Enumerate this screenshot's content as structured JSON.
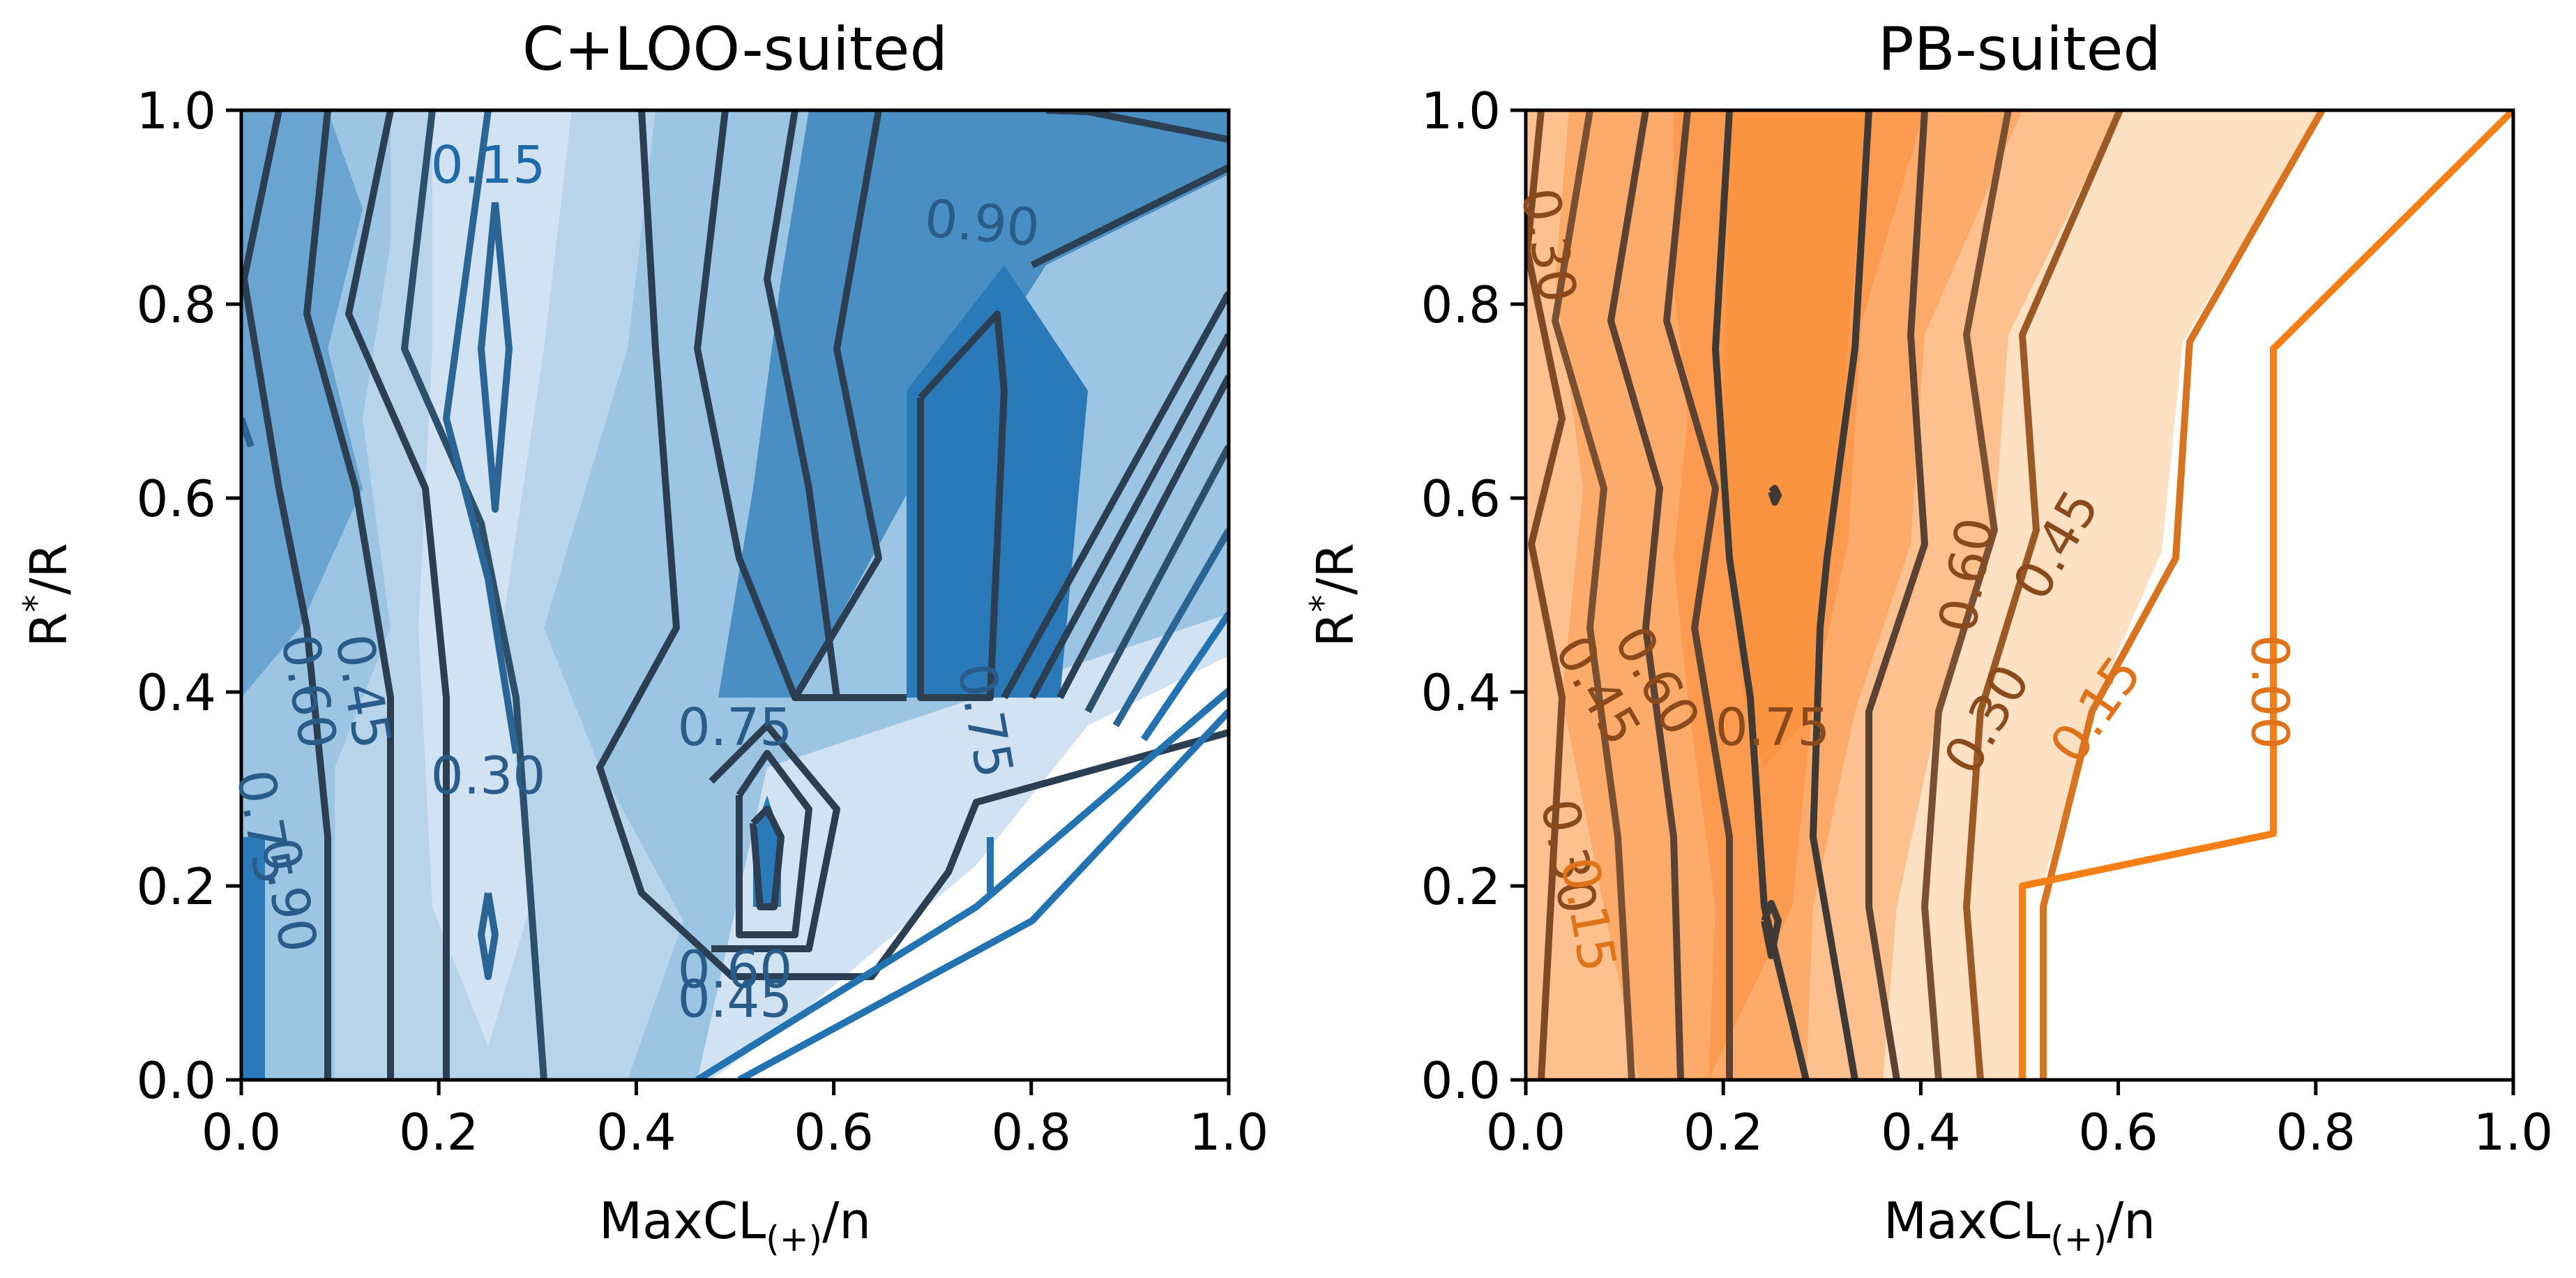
{
  "chart_data": [
    {
      "type": "contour",
      "title": "C+LOO-suited",
      "xlabel": {
        "base": "MaxCL",
        "sub": "(+)",
        "tail": "/n"
      },
      "ylabel": {
        "base": "R",
        "sup": "*",
        "tail": "/R"
      },
      "xlim": [
        0.0,
        1.0
      ],
      "ylim": [
        0.0,
        1.0
      ],
      "x_ticks": [
        "0.0",
        "0.2",
        "0.4",
        "0.6",
        "0.8",
        "1.0"
      ],
      "y_ticks": [
        "0.0",
        "0.2",
        "0.4",
        "0.6",
        "0.8",
        "1.0"
      ],
      "x_values": [
        0.0,
        0.25,
        0.5,
        0.75,
        1.0
      ],
      "y_values": [
        0.0,
        0.25,
        0.5,
        0.75,
        1.0
      ],
      "colormap": "Blues",
      "levels": [
        0.0,
        0.15,
        0.3,
        0.45,
        0.6,
        0.75,
        0.9
      ],
      "contour_labels": [
        {
          "text": "0.15",
          "x": 0.25,
          "y": 0.94
        },
        {
          "text": "0.90",
          "x": 0.75,
          "y": 0.88
        },
        {
          "text": "0.45",
          "x": 0.12,
          "y": 0.4
        },
        {
          "text": "0.60",
          "x": 0.065,
          "y": 0.4
        },
        {
          "text": "0.75",
          "x": 0.5,
          "y": 0.36
        },
        {
          "text": "0.30",
          "x": 0.25,
          "y": 0.31
        },
        {
          "text": "0.75",
          "x": 0.75,
          "y": 0.37
        },
        {
          "text": "0.60",
          "x": 0.5,
          "y": 0.11
        },
        {
          "text": "0.45",
          "x": 0.5,
          "y": 0.08
        },
        {
          "text": "0.75",
          "x": 0.02,
          "y": 0.26
        },
        {
          "text": "0.90",
          "x": 0.045,
          "y": 0.19
        }
      ]
    },
    {
      "type": "contour",
      "title": "PB-suited",
      "xlabel": {
        "base": "MaxCL",
        "sub": "(+)",
        "tail": "/n"
      },
      "ylabel": {
        "base": "R",
        "sup": "*",
        "tail": "/R"
      },
      "xlim": [
        0.0,
        1.0
      ],
      "ylim": [
        0.0,
        1.0
      ],
      "x_ticks": [
        "0.0",
        "0.2",
        "0.4",
        "0.6",
        "0.8",
        "1.0"
      ],
      "y_ticks": [
        "0.0",
        "0.2",
        "0.4",
        "0.6",
        "0.8",
        "1.0"
      ],
      "x_values": [
        0.0,
        0.25,
        0.5,
        0.75,
        1.0
      ],
      "y_values": [
        0.0,
        0.25,
        0.5,
        0.75,
        1.0
      ],
      "colormap": "Oranges",
      "levels": [
        0.0,
        0.15,
        0.3,
        0.45,
        0.6,
        0.75
      ],
      "contour_labels": [
        {
          "text": "0.30",
          "x": 0.02,
          "y": 0.86
        },
        {
          "text": "0.60",
          "x": 0.45,
          "y": 0.52
        },
        {
          "text": "0.45",
          "x": 0.54,
          "y": 0.55
        },
        {
          "text": "0.45",
          "x": 0.07,
          "y": 0.4
        },
        {
          "text": "0.60",
          "x": 0.13,
          "y": 0.41
        },
        {
          "text": "0.75",
          "x": 0.25,
          "y": 0.36
        },
        {
          "text": "0.30",
          "x": 0.47,
          "y": 0.37
        },
        {
          "text": "0.15",
          "x": 0.58,
          "y": 0.38
        },
        {
          "text": "0.00",
          "x": 0.75,
          "y": 0.4
        },
        {
          "text": "0.30",
          "x": 0.04,
          "y": 0.23
        },
        {
          "text": "0.15",
          "x": 0.06,
          "y": 0.17
        }
      ]
    }
  ]
}
